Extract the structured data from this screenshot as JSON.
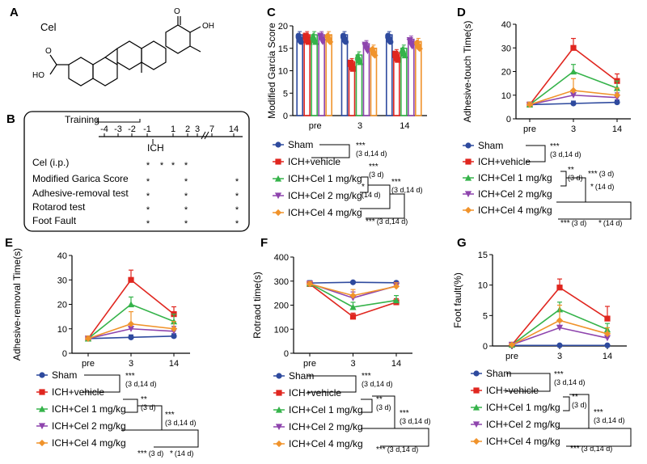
{
  "series_colors": {
    "Sham": "#2e4a9e",
    "ICH+vehicle": "#e0261f",
    "ICH+Cel 1 mg/kg": "#35b34a",
    "ICH+Cel 2 mg/kg": "#8e44ad",
    "ICH+Cel 4 mg/kg": "#f0932b"
  },
  "panel_a": {
    "letter": "A",
    "compound_label": "Cel",
    "atom_labels": [
      "O",
      "OH",
      "HO",
      "O"
    ]
  },
  "panel_b": {
    "letter": "B",
    "training_label": "Training",
    "timeline_ticks": [
      "-4",
      "-3",
      "-2",
      "-1",
      "1",
      "2",
      "3",
      "7",
      "14"
    ],
    "ich_label": "ICH",
    "rows": [
      {
        "label": "Cel (i.p.)",
        "marks": [
          true,
          true,
          true,
          true,
          false,
          false
        ]
      },
      {
        "label": "Modified Garica Score",
        "marks": [
          true,
          false,
          false,
          true,
          false,
          true
        ]
      },
      {
        "label": "Adhesive-removal test",
        "marks": [
          true,
          false,
          false,
          true,
          false,
          true
        ]
      },
      {
        "label": "Rotarod test",
        "marks": [
          true,
          false,
          false,
          true,
          false,
          true
        ]
      },
      {
        "label": "Foot Fault",
        "marks": [
          true,
          false,
          false,
          true,
          false,
          true
        ]
      }
    ],
    "mark_symbol": "*"
  },
  "chart_data": [
    {
      "panel": "C",
      "type": "bar",
      "ylabel": "Modified Garcia Score",
      "xlabel": "",
      "categories": [
        "pre",
        "3",
        "14"
      ],
      "ylim": [
        0,
        20
      ],
      "yticks": [
        0,
        5,
        10,
        15,
        20
      ],
      "series": [
        {
          "name": "Sham",
          "values": [
            18,
            18,
            18
          ]
        },
        {
          "name": "ICH+vehicle",
          "values": [
            18,
            12,
            14
          ]
        },
        {
          "name": "ICH+Cel 1 mg/kg",
          "values": [
            18,
            13.5,
            15
          ]
        },
        {
          "name": "ICH+Cel 2 mg/kg",
          "values": [
            18,
            16,
            17
          ]
        },
        {
          "name": "ICH+Cel 4 mg/kg",
          "values": [
            18,
            15,
            16.5
          ]
        }
      ],
      "legend": [
        "Sham",
        "ICH+vehicle",
        "ICH+Cel 1 mg/kg",
        "ICH+Cel 2 mg/kg",
        "ICH+Cel 4 mg/kg"
      ],
      "annotations": [
        {
          "stars": "***",
          "detail": "(3 d,14 d)"
        },
        {
          "stars": "***",
          "detail": "(3 d)"
        },
        {
          "stars": "*",
          "detail": "(14 d)"
        },
        {
          "stars": "***",
          "detail": "(3 d,14 d)"
        },
        {
          "stars": "***",
          "detail": "(3 d,14 d)"
        }
      ]
    },
    {
      "panel": "D",
      "type": "line",
      "ylabel": "Adhesive-touch Time(s)",
      "xlabel": "",
      "categories": [
        "pre",
        "3",
        "14"
      ],
      "ylim": [
        0,
        40
      ],
      "yticks": [
        0,
        10,
        20,
        30,
        40
      ],
      "series": [
        {
          "name": "Sham",
          "values": [
            6,
            6.5,
            7
          ],
          "errors": [
            1,
            1,
            1
          ]
        },
        {
          "name": "ICH+vehicle",
          "values": [
            6,
            30,
            16
          ],
          "errors": [
            1,
            4,
            3
          ]
        },
        {
          "name": "ICH+Cel 1 mg/kg",
          "values": [
            6,
            20,
            13
          ],
          "errors": [
            1,
            3,
            3
          ]
        },
        {
          "name": "ICH+Cel 2 mg/kg",
          "values": [
            6,
            10,
            9
          ],
          "errors": [
            1,
            2,
            2
          ]
        },
        {
          "name": "ICH+Cel 4 mg/kg",
          "values": [
            6,
            12,
            10
          ],
          "errors": [
            1,
            5,
            3
          ]
        }
      ],
      "legend": [
        "Sham",
        "ICH+vehicle",
        "ICH+Cel 1 mg/kg",
        "ICH+Cel 2 mg/kg",
        "ICH+Cel 4 mg/kg"
      ],
      "annotations": [
        {
          "stars": "***",
          "detail": "(3 d,14 d)"
        },
        {
          "stars": "**",
          "detail": "(3 d)"
        },
        {
          "stars": "***",
          "detail": "(3 d)"
        },
        {
          "stars": "*",
          "detail": "(14 d)"
        },
        {
          "stars": "***",
          "detail": "(3 d)"
        },
        {
          "stars": "*",
          "detail": "(14 d)"
        }
      ]
    },
    {
      "panel": "E",
      "type": "line",
      "ylabel": "Adhesive-removal Time(s)",
      "xlabel": "",
      "categories": [
        "pre",
        "3",
        "14"
      ],
      "ylim": [
        0,
        40
      ],
      "yticks": [
        0,
        10,
        20,
        30,
        40
      ],
      "series": [
        {
          "name": "Sham",
          "values": [
            6,
            6.5,
            7
          ],
          "errors": [
            1,
            1,
            1
          ]
        },
        {
          "name": "ICH+vehicle",
          "values": [
            6,
            30,
            16
          ],
          "errors": [
            1,
            4,
            3
          ]
        },
        {
          "name": "ICH+Cel 1 mg/kg",
          "values": [
            6,
            20,
            13
          ],
          "errors": [
            1,
            3,
            3
          ]
        },
        {
          "name": "ICH+Cel 2 mg/kg",
          "values": [
            6,
            10,
            9
          ],
          "errors": [
            1,
            2,
            2
          ]
        },
        {
          "name": "ICH+Cel 4 mg/kg",
          "values": [
            6,
            12,
            10
          ],
          "errors": [
            1,
            5,
            3
          ]
        }
      ],
      "legend": [
        "Sham",
        "ICH+vehicle",
        "ICH+Cel 1 mg/kg",
        "ICH+Cel 2 mg/kg",
        "ICH+Cel 4 mg/kg"
      ],
      "annotations": [
        {
          "stars": "***",
          "detail": "(3 d,14 d)"
        },
        {
          "stars": "**",
          "detail": "(3 d)"
        },
        {
          "stars": "***",
          "detail": "(3 d,14 d)"
        },
        {
          "stars": "***",
          "detail": "(3 d)"
        },
        {
          "stars": "*",
          "detail": "(14 d)"
        }
      ]
    },
    {
      "panel": "F",
      "type": "line",
      "ylabel": "Rotraod time(s)",
      "xlabel": "",
      "categories": [
        "pre",
        "3",
        "14"
      ],
      "ylim": [
        0,
        400
      ],
      "yticks": [
        0,
        100,
        200,
        300,
        400
      ],
      "series": [
        {
          "name": "Sham",
          "values": [
            292,
            295,
            293
          ],
          "errors": [
            10,
            5,
            5
          ]
        },
        {
          "name": "ICH+vehicle",
          "values": [
            288,
            152,
            212
          ],
          "errors": [
            12,
            15,
            15
          ]
        },
        {
          "name": "ICH+Cel 1 mg/kg",
          "values": [
            290,
            192,
            220
          ],
          "errors": [
            10,
            20,
            20
          ]
        },
        {
          "name": "ICH+Cel 2 mg/kg",
          "values": [
            290,
            230,
            280
          ],
          "errors": [
            10,
            25,
            15
          ]
        },
        {
          "name": "ICH+Cel 4 mg/kg",
          "values": [
            288,
            240,
            278
          ],
          "errors": [
            10,
            25,
            15
          ]
        }
      ],
      "legend": [
        "Sham",
        "ICH+vehicle",
        "ICH+Cel 1 mg/kg",
        "ICH+Cel 2 mg/kg",
        "ICH+Cel 4 mg/kg"
      ],
      "annotations": [
        {
          "stars": "***",
          "detail": "(3 d,14 d)"
        },
        {
          "stars": "**",
          "detail": "(3 d)"
        },
        {
          "stars": "***",
          "detail": "(3 d,14 d)"
        },
        {
          "stars": "***",
          "detail": "(3 d,14 d)"
        }
      ]
    },
    {
      "panel": "G",
      "type": "line",
      "ylabel": "Foot fault(%)",
      "xlabel": "",
      "categories": [
        "pre",
        "3",
        "14"
      ],
      "ylim": [
        0,
        15
      ],
      "yticks": [
        0,
        5,
        10,
        15
      ],
      "series": [
        {
          "name": "Sham",
          "values": [
            0.1,
            0.1,
            0.1
          ],
          "errors": [
            0.1,
            0.1,
            0.1
          ]
        },
        {
          "name": "ICH+vehicle",
          "values": [
            0.2,
            9.6,
            4.5
          ],
          "errors": [
            0.2,
            1.4,
            2
          ]
        },
        {
          "name": "ICH+Cel 1 mg/kg",
          "values": [
            0.2,
            6,
            2.7
          ],
          "errors": [
            0.2,
            1.2,
            1
          ]
        },
        {
          "name": "ICH+Cel 2 mg/kg",
          "values": [
            0.2,
            3,
            1.3
          ],
          "errors": [
            0.2,
            1,
            0.8
          ]
        },
        {
          "name": "ICH+Cel 4 mg/kg",
          "values": [
            0.2,
            4.2,
            2
          ],
          "errors": [
            0.2,
            2.5,
            1
          ]
        }
      ],
      "legend": [
        "Sham",
        "ICH+vehicle",
        "ICH+Cel 1 mg/kg",
        "ICH+Cel 2 mg/kg",
        "ICH+Cel 4 mg/kg"
      ],
      "annotations": [
        {
          "stars": "***",
          "detail": "(3 d,14 d)"
        },
        {
          "stars": "**",
          "detail": "(3 d)"
        },
        {
          "stars": "***",
          "detail": "(3 d,14 d)"
        },
        {
          "stars": "***",
          "detail": "(3 d,14 d)"
        }
      ]
    }
  ]
}
